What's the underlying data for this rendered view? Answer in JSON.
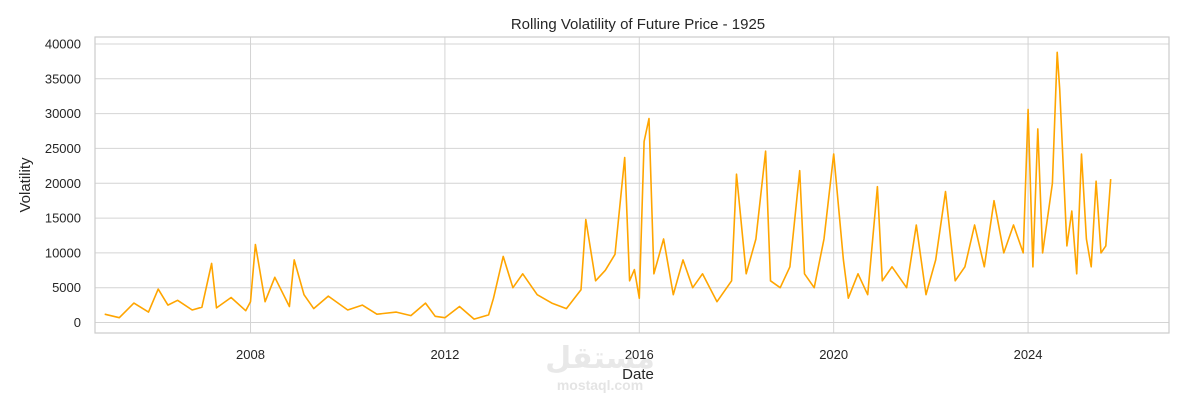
{
  "chart_data": {
    "type": "line",
    "title": "Rolling Volatility of Future Price - 1925",
    "xlabel": "Date",
    "ylabel": "Volatility",
    "xlim": [
      2004.8,
      2026.9
    ],
    "ylim": [
      -1500,
      41000
    ],
    "x_ticks": [
      2008,
      2012,
      2016,
      2020,
      2024
    ],
    "x_tick_labels": [
      "2008",
      "2012",
      "2016",
      "2020",
      "2024"
    ],
    "y_ticks": [
      0,
      5000,
      10000,
      15000,
      20000,
      25000,
      30000,
      35000,
      40000
    ],
    "y_tick_labels": [
      "0",
      "5000",
      "10000",
      "15000",
      "20000",
      "25000",
      "30000",
      "35000",
      "40000"
    ],
    "grid": true,
    "series": [
      {
        "name": "Rolling Volatility",
        "color": "#ffa500",
        "x": [
          2005.0,
          2005.3,
          2005.6,
          2005.9,
          2006.1,
          2006.3,
          2006.5,
          2006.8,
          2007.0,
          2007.2,
          2007.3,
          2007.6,
          2007.9,
          2008.0,
          2008.1,
          2008.3,
          2008.5,
          2008.8,
          2008.9,
          2009.1,
          2009.3,
          2009.6,
          2010.0,
          2010.3,
          2010.6,
          2011.0,
          2011.3,
          2011.6,
          2011.8,
          2012.0,
          2012.3,
          2012.6,
          2012.9,
          2013.0,
          2013.2,
          2013.4,
          2013.6,
          2013.9,
          2014.2,
          2014.5,
          2014.8,
          2014.9,
          2015.1,
          2015.3,
          2015.5,
          2015.7,
          2015.8,
          2015.9,
          2016.0,
          2016.1,
          2016.2,
          2016.3,
          2016.5,
          2016.7,
          2016.9,
          2017.1,
          2017.3,
          2017.6,
          2017.9,
          2018.0,
          2018.2,
          2018.4,
          2018.6,
          2018.7,
          2018.9,
          2019.1,
          2019.3,
          2019.4,
          2019.6,
          2019.8,
          2020.0,
          2020.2,
          2020.3,
          2020.5,
          2020.7,
          2020.9,
          2021.0,
          2021.2,
          2021.5,
          2021.7,
          2021.9,
          2022.1,
          2022.3,
          2022.5,
          2022.7,
          2022.9,
          2023.1,
          2023.3,
          2023.5,
          2023.7,
          2023.9,
          2024.0,
          2024.1,
          2024.2,
          2024.3,
          2024.5,
          2024.6,
          2024.65,
          2024.8,
          2024.9,
          2025.0,
          2025.1,
          2025.2,
          2025.3,
          2025.4,
          2025.5,
          2025.6,
          2025.7
        ],
        "values": [
          1200,
          700,
          2800,
          1500,
          4800,
          2500,
          3200,
          1800,
          2200,
          8500,
          2100,
          3600,
          1700,
          3000,
          11200,
          3000,
          6500,
          2300,
          9000,
          4000,
          2000,
          3800,
          1800,
          2500,
          1200,
          1500,
          1000,
          2800,
          900,
          700,
          2300,
          500,
          1100,
          3500,
          9500,
          5000,
          7000,
          4000,
          2800,
          2000,
          4700,
          14800,
          6000,
          7500,
          9800,
          23700,
          6000,
          7600,
          3500,
          26000,
          29300,
          7000,
          12000,
          4000,
          9000,
          5000,
          7000,
          3000,
          6000,
          21300,
          7000,
          12000,
          24600,
          6000,
          5000,
          8000,
          21800,
          7000,
          5000,
          12000,
          24200,
          9000,
          3500,
          7000,
          4000,
          19500,
          6000,
          8000,
          5000,
          14000,
          4000,
          9000,
          18800,
          6000,
          8000,
          14000,
          8000,
          17500,
          10000,
          14000,
          10000,
          30600,
          8000,
          27800,
          10000,
          20000,
          38800,
          33500,
          11000,
          16000,
          7000,
          24200,
          12000,
          8000,
          20300,
          10000,
          11000,
          20600
        ]
      }
    ]
  },
  "watermark": {
    "logo_text": "مستقل",
    "site_text": "mostaql.com"
  }
}
